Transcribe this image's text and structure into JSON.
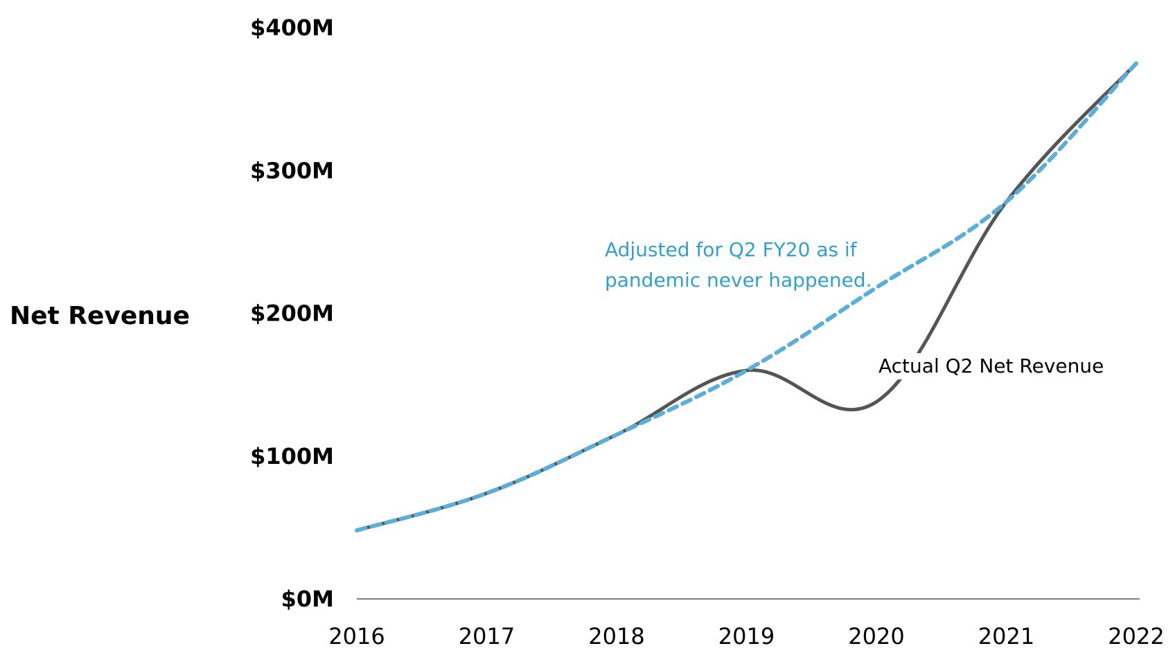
{
  "chart_data": {
    "type": "line",
    "ylabel": "Net Revenue",
    "xlabel": "",
    "title": "",
    "x": [
      "2016",
      "2017",
      "2018",
      "2019",
      "2020",
      "2021",
      "2022"
    ],
    "ylim": [
      0,
      400
    ],
    "y_tick_values": [
      0,
      100,
      200,
      300,
      400
    ],
    "y_tick_labels": [
      "$0M",
      "$100M",
      "$200M",
      "$300M",
      "$400M"
    ],
    "grid": false,
    "series": [
      {
        "name": "Adjusted for Q2 FY20 as if pandemic never happened.",
        "style": "dashed",
        "color": "#5aaedb",
        "values": [
          48,
          74,
          115,
          160,
          218,
          278,
          375
        ]
      },
      {
        "name": "Actual Q2 Net Revenue",
        "style": "solid",
        "color": "#555555",
        "values": [
          48,
          74,
          115,
          160,
          138,
          278,
          375
        ]
      }
    ],
    "annotations": [
      {
        "series": 0,
        "lines": [
          "Adjusted for Q2 FY20 as if",
          "pandemic never happened."
        ],
        "color": "#2f9fd4"
      },
      {
        "series": 1,
        "lines": [
          "Actual Q2 Net Revenue"
        ],
        "color": "#000000"
      }
    ]
  }
}
